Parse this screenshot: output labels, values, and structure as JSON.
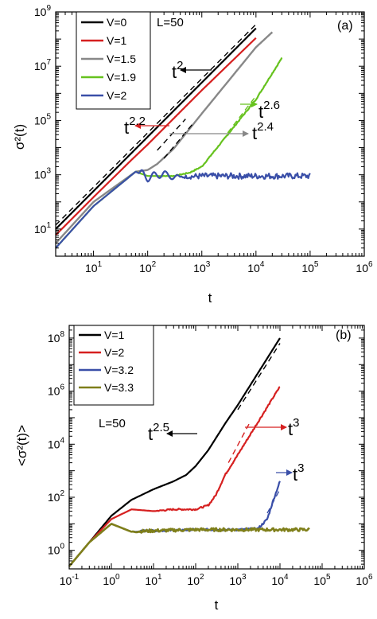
{
  "chart_data": [
    {
      "panel": "(a)",
      "type": "line",
      "title": "",
      "xlabel": "t",
      "ylabel": "σ²(t)",
      "xscale": "log",
      "yscale": "log",
      "xlim": [
        2,
        1000000
      ],
      "ylim": [
        1,
        1000000000
      ],
      "xticks": [
        {
          "m": "10",
          "e": "1",
          "v": 10
        },
        {
          "m": "10",
          "e": "2",
          "v": 100
        },
        {
          "m": "10",
          "e": "3",
          "v": 1000
        },
        {
          "m": "10",
          "e": "4",
          "v": 10000
        },
        {
          "m": "10",
          "e": "5",
          "v": 100000
        },
        {
          "m": "10",
          "e": "6",
          "v": 1000000
        }
      ],
      "yticks": [
        {
          "m": "10",
          "e": "1",
          "v": 10
        },
        {
          "m": "10",
          "e": "3",
          "v": 1000
        },
        {
          "m": "10",
          "e": "5",
          "v": 100000
        },
        {
          "m": "10",
          "e": "7",
          "v": 10000000
        },
        {
          "m": "10",
          "e": "9",
          "v": 1000000000
        }
      ],
      "legend_position": "top-left",
      "grid": false,
      "annotations": {
        "size_label": "L=50",
        "panel_label": "(a)",
        "slopes": [
          {
            "base": "t",
            "exp": "2"
          },
          {
            "base": "t",
            "exp": "2.2"
          },
          {
            "base": "t",
            "exp": "2.6"
          },
          {
            "base": "t",
            "exp": "2.4"
          }
        ]
      },
      "series": [
        {
          "name": "V=0",
          "color": "#000000",
          "x": [
            2,
            10,
            100,
            1000,
            10000
          ],
          "y": [
            10,
            250,
            25000,
            2500000,
            250000000
          ]
        },
        {
          "name": "V=1",
          "color": "#d62020",
          "x": [
            2,
            10,
            50,
            100,
            1000,
            10000
          ],
          "y": [
            6,
            150,
            3500,
            13000,
            1300000,
            110000000
          ]
        },
        {
          "name": "V=1.5",
          "color": "#888888",
          "x": [
            2,
            10,
            60,
            100,
            150,
            300,
            1000,
            10000,
            20000
          ],
          "y": [
            3,
            100,
            1300,
            1500,
            2500,
            9000,
            180000,
            50000000,
            180000000
          ]
        },
        {
          "name": "V=1.9",
          "color": "#66c21e",
          "x": [
            2,
            10,
            60,
            100,
            300,
            600,
            1000,
            3000,
            10000,
            30000
          ],
          "y": [
            2,
            70,
            1300,
            900,
            900,
            1200,
            2000,
            30000,
            600000,
            20000000
          ]
        },
        {
          "name": "V=2",
          "color": "#3a4fa8",
          "x": [
            2,
            10,
            60,
            100,
            200,
            300,
            1000,
            10000,
            100000
          ],
          "y": [
            2,
            70,
            1300,
            800,
            1100,
            800,
            900,
            900,
            900
          ]
        }
      ]
    },
    {
      "panel": "(b)",
      "type": "line",
      "title": "",
      "xlabel": "t",
      "ylabel": "<σ²(t)>",
      "xscale": "log",
      "yscale": "log",
      "xlim": [
        0.1,
        1000000
      ],
      "ylim": [
        0.2,
        300000000
      ],
      "xticks": [
        {
          "m": "10",
          "e": "-1",
          "v": 0.1
        },
        {
          "m": "10",
          "e": "0",
          "v": 1
        },
        {
          "m": "10",
          "e": "1",
          "v": 10
        },
        {
          "m": "10",
          "e": "2",
          "v": 100
        },
        {
          "m": "10",
          "e": "3",
          "v": 1000
        },
        {
          "m": "10",
          "e": "4",
          "v": 10000
        },
        {
          "m": "10",
          "e": "5",
          "v": 100000
        },
        {
          "m": "10",
          "e": "6",
          "v": 1000000
        }
      ],
      "yticks": [
        {
          "m": "10",
          "e": "0",
          "v": 1
        },
        {
          "m": "10",
          "e": "2",
          "v": 100
        },
        {
          "m": "10",
          "e": "4",
          "v": 10000
        },
        {
          "m": "10",
          "e": "6",
          "v": 1000000
        },
        {
          "m": "10",
          "e": "8",
          "v": 100000000
        }
      ],
      "legend_position": "top-left",
      "grid": false,
      "annotations": {
        "size_label": "L=50",
        "panel_label": "(b)",
        "slopes": [
          {
            "base": "t",
            "exp": "2.5"
          },
          {
            "base": "t",
            "exp": "3"
          },
          {
            "base": "t",
            "exp": "3"
          }
        ]
      },
      "series": [
        {
          "name": "V=1",
          "color": "#000000",
          "x": [
            0.1,
            0.3,
            1,
            3,
            10,
            30,
            60,
            100,
            200,
            500,
            1000,
            10000
          ],
          "y": [
            0.25,
            2,
            20,
            80,
            200,
            400,
            700,
            1500,
            6000,
            60000,
            300000,
            100000000
          ]
        },
        {
          "name": "V=2",
          "color": "#d62020",
          "x": [
            0.1,
            0.3,
            1,
            3,
            10,
            30,
            100,
            200,
            300,
            500,
            1000,
            10000
          ],
          "y": [
            0.25,
            2,
            15,
            35,
            30,
            35,
            35,
            50,
            120,
            700,
            4000,
            1500000
          ]
        },
        {
          "name": "V=3.2",
          "color": "#3a4fa8",
          "x": [
            0.1,
            0.3,
            1,
            3,
            10,
            100,
            1000,
            3000,
            5000,
            7000,
            10000
          ],
          "y": [
            0.25,
            2,
            10,
            5,
            5.5,
            6,
            6,
            6.5,
            15,
            80,
            400
          ]
        },
        {
          "name": "V=3.3",
          "color": "#7f7f1a",
          "x": [
            0.1,
            0.3,
            1,
            3,
            10,
            100,
            1000,
            10000,
            50000
          ],
          "y": [
            0.25,
            2,
            10,
            5,
            5.5,
            6,
            6,
            6,
            6
          ]
        }
      ]
    }
  ]
}
